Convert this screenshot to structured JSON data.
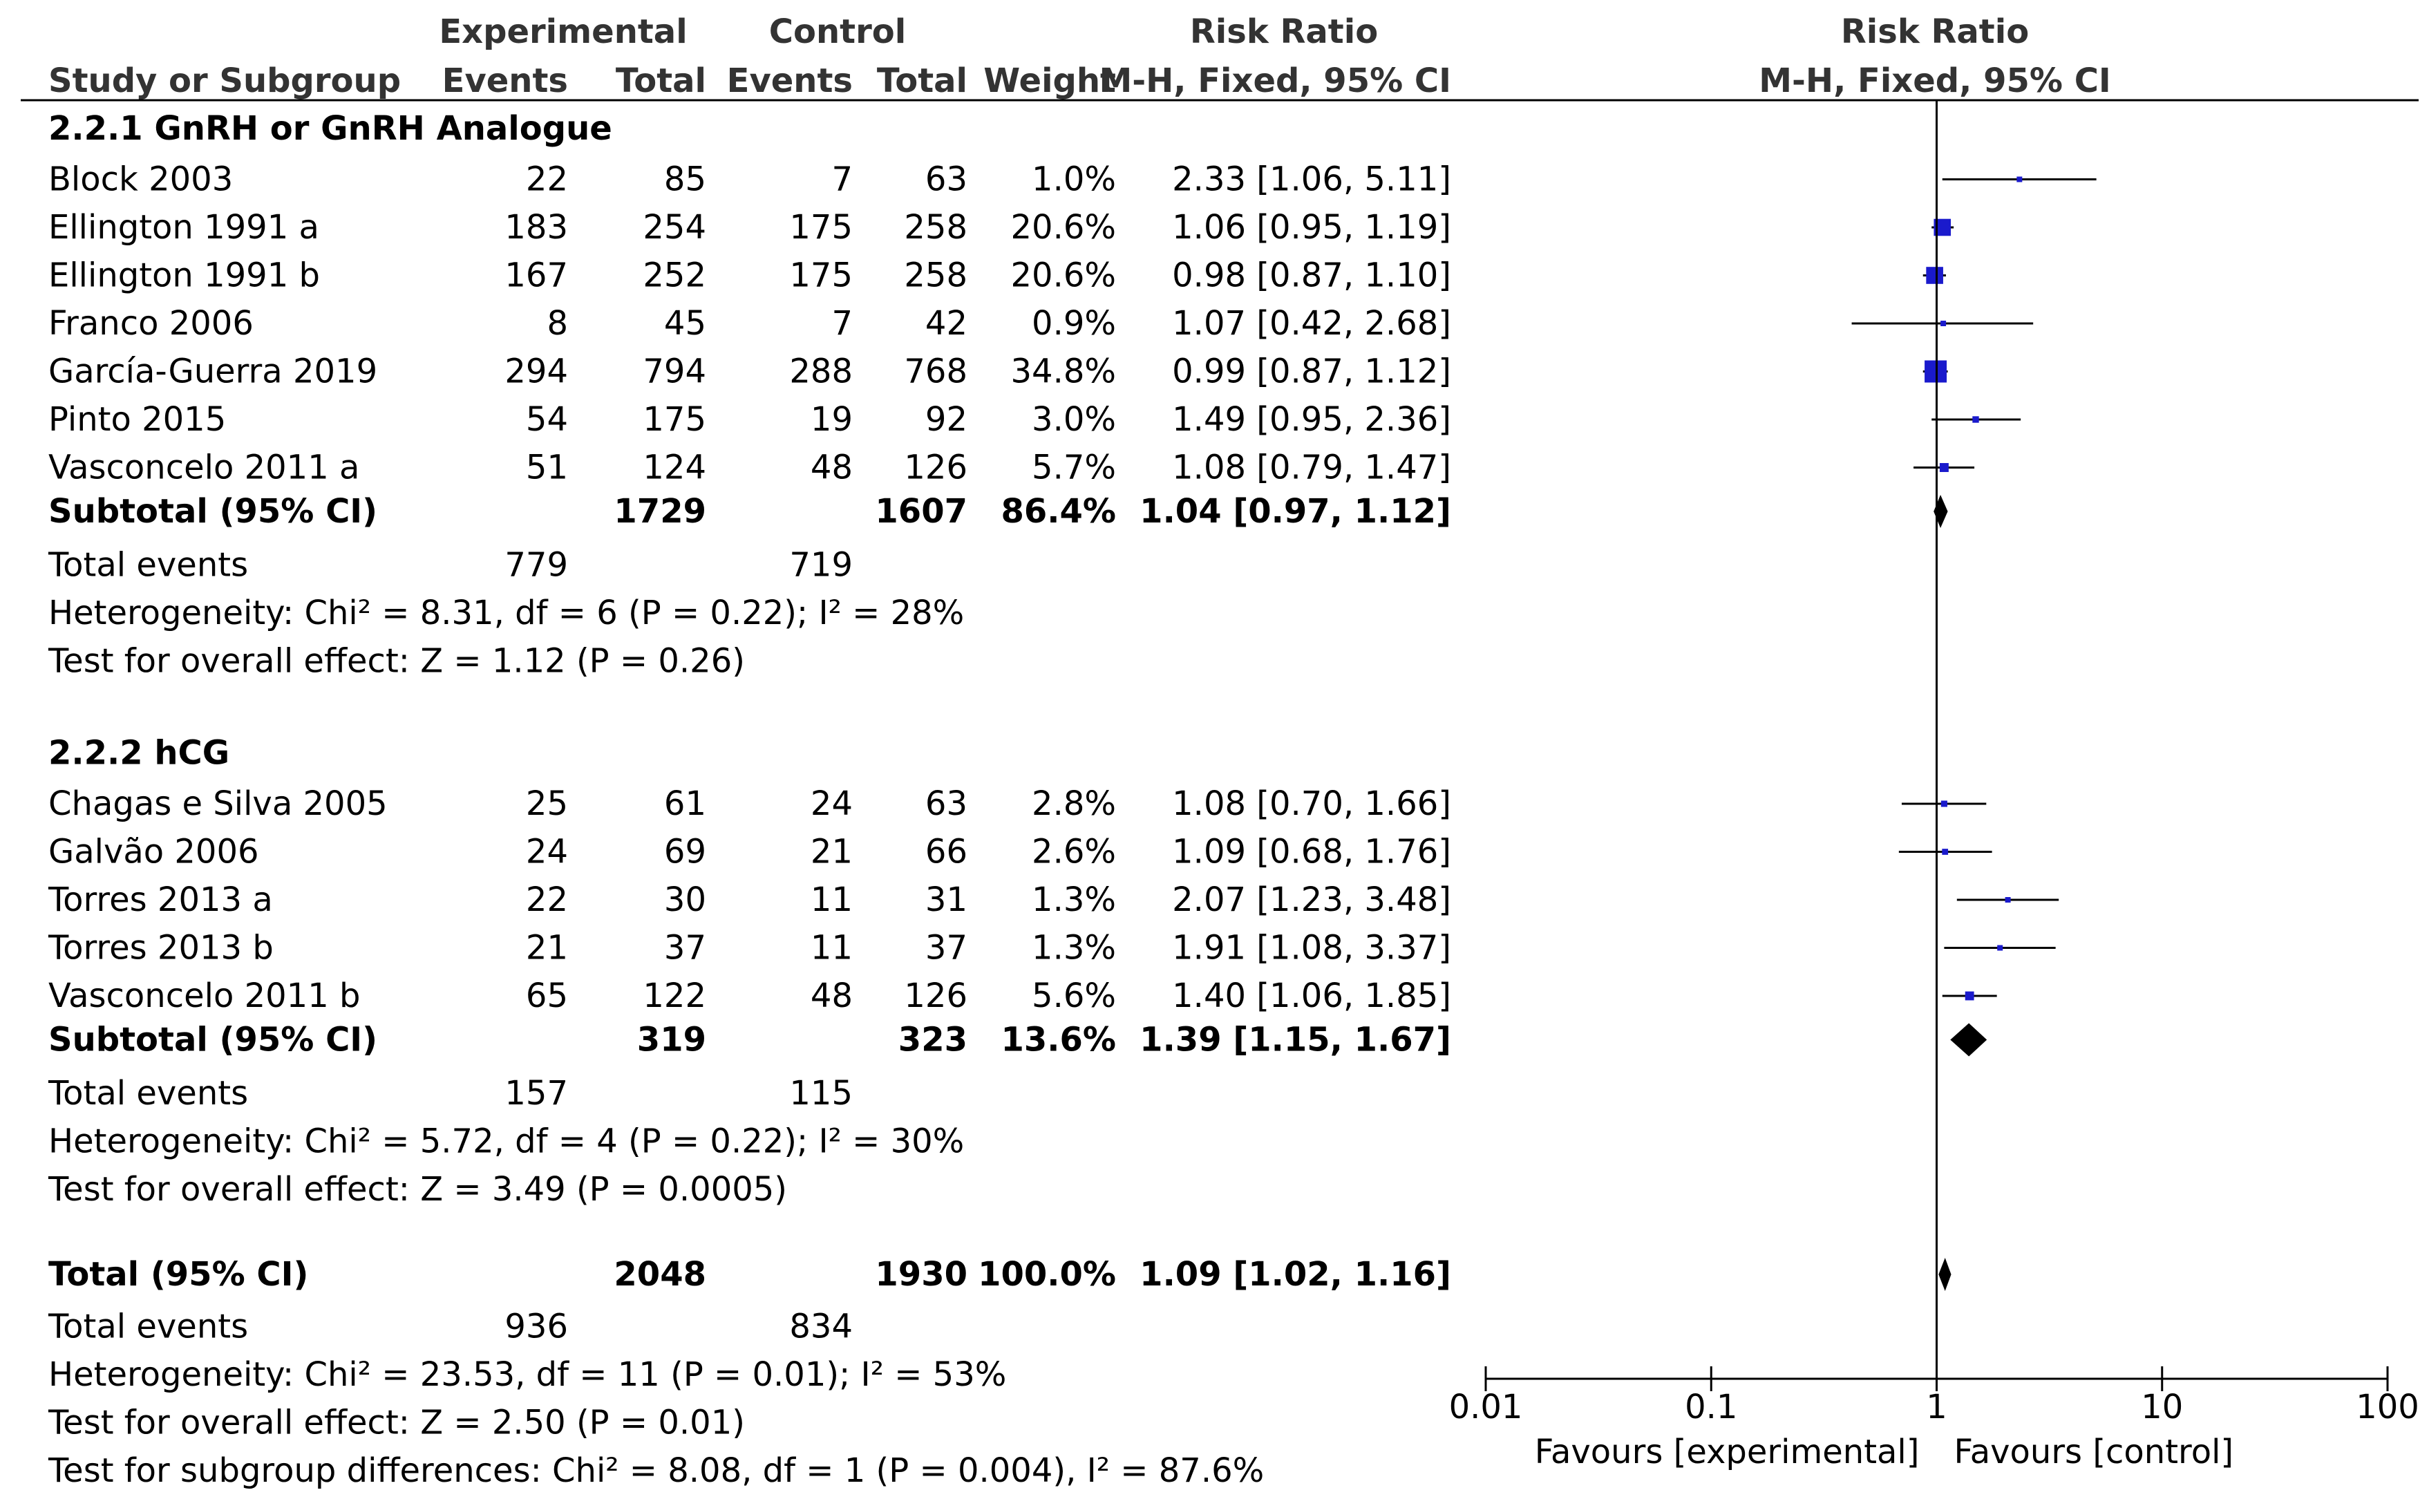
{
  "chart_data": {
    "type": "forest",
    "title": "Risk Ratio (M-H, Fixed, 95% CI)",
    "header": {
      "experimental": "Experimental",
      "control": "Control",
      "risk_ratio_col": "Risk Ratio",
      "risk_ratio_plot": "Risk Ratio",
      "study": "Study or Subgroup",
      "events": "Events",
      "total": "Total",
      "weight": "Weight",
      "method": "M-H, Fixed, 95% CI",
      "method_plot": "M-H, Fixed, 95% CI"
    },
    "subgroups": [
      {
        "name": "2.2.1 GnRH or GnRH Analogue",
        "studies": [
          {
            "study": "Block 2003",
            "exp_events": "22",
            "exp_total": "85",
            "ctl_events": "7",
            "ctl_total": "63",
            "weight_text": "1.0%",
            "ci_text": "2.33 [1.06, 5.11]",
            "rr": 2.33,
            "lo": 1.06,
            "hi": 5.11,
            "weight": 1.0
          },
          {
            "study": "Ellington 1991 a",
            "exp_events": "183",
            "exp_total": "254",
            "ctl_events": "175",
            "ctl_total": "258",
            "weight_text": "20.6%",
            "ci_text": "1.06 [0.95, 1.19]",
            "rr": 1.06,
            "lo": 0.95,
            "hi": 1.19,
            "weight": 20.6
          },
          {
            "study": "Ellington 1991 b",
            "exp_events": "167",
            "exp_total": "252",
            "ctl_events": "175",
            "ctl_total": "258",
            "weight_text": "20.6%",
            "ci_text": "0.98 [0.87, 1.10]",
            "rr": 0.98,
            "lo": 0.87,
            "hi": 1.1,
            "weight": 20.6
          },
          {
            "study": "Franco 2006",
            "exp_events": "8",
            "exp_total": "45",
            "ctl_events": "7",
            "ctl_total": "42",
            "weight_text": "0.9%",
            "ci_text": "1.07 [0.42, 2.68]",
            "rr": 1.07,
            "lo": 0.42,
            "hi": 2.68,
            "weight": 0.9
          },
          {
            "study": "García-Guerra 2019",
            "exp_events": "294",
            "exp_total": "794",
            "ctl_events": "288",
            "ctl_total": "768",
            "weight_text": "34.8%",
            "ci_text": "0.99 [0.87, 1.12]",
            "rr": 0.99,
            "lo": 0.87,
            "hi": 1.12,
            "weight": 34.8
          },
          {
            "study": "Pinto 2015",
            "exp_events": "54",
            "exp_total": "175",
            "ctl_events": "19",
            "ctl_total": "92",
            "weight_text": "3.0%",
            "ci_text": "1.49 [0.95, 2.36]",
            "rr": 1.49,
            "lo": 0.95,
            "hi": 2.36,
            "weight": 3.0
          },
          {
            "study": "Vasconcelo 2011 a",
            "exp_events": "51",
            "exp_total": "124",
            "ctl_events": "48",
            "ctl_total": "126",
            "weight_text": "5.7%",
            "ci_text": "1.08 [0.79, 1.47]",
            "rr": 1.08,
            "lo": 0.79,
            "hi": 1.47,
            "weight": 5.7
          }
        ],
        "subtotal": {
          "label": "Subtotal (95% CI)",
          "exp_total": "1729",
          "ctl_total": "1607",
          "weight_text": "86.4%",
          "ci_text": "1.04 [0.97, 1.12]",
          "rr": 1.04,
          "lo": 0.97,
          "hi": 1.12
        },
        "total_events": {
          "label": "Total events",
          "exp": "779",
          "ctl": "719"
        },
        "heterogeneity": "Heterogeneity: Chi² = 8.31, df = 6 (P = 0.22); I² = 28%",
        "overall": "Test for overall effect: Z = 1.12 (P = 0.26)"
      },
      {
        "name": "2.2.2 hCG",
        "studies": [
          {
            "study": "Chagas e Silva 2005",
            "exp_events": "25",
            "exp_total": "61",
            "ctl_events": "24",
            "ctl_total": "63",
            "weight_text": "2.8%",
            "ci_text": "1.08 [0.70, 1.66]",
            "rr": 1.08,
            "lo": 0.7,
            "hi": 1.66,
            "weight": 2.8
          },
          {
            "study": "Galvão 2006",
            "exp_events": "24",
            "exp_total": "69",
            "ctl_events": "21",
            "ctl_total": "66",
            "weight_text": "2.6%",
            "ci_text": "1.09 [0.68, 1.76]",
            "rr": 1.09,
            "lo": 0.68,
            "hi": 1.76,
            "weight": 2.6
          },
          {
            "study": "Torres 2013 a",
            "exp_events": "22",
            "exp_total": "30",
            "ctl_events": "11",
            "ctl_total": "31",
            "weight_text": "1.3%",
            "ci_text": "2.07 [1.23, 3.48]",
            "rr": 2.07,
            "lo": 1.23,
            "hi": 3.48,
            "weight": 1.3
          },
          {
            "study": "Torres 2013 b",
            "exp_events": "21",
            "exp_total": "37",
            "ctl_events": "11",
            "ctl_total": "37",
            "weight_text": "1.3%",
            "ci_text": "1.91 [1.08, 3.37]",
            "rr": 1.91,
            "lo": 1.08,
            "hi": 3.37,
            "weight": 1.3
          },
          {
            "study": "Vasconcelo 2011 b",
            "exp_events": "65",
            "exp_total": "122",
            "ctl_events": "48",
            "ctl_total": "126",
            "weight_text": "5.6%",
            "ci_text": "1.40 [1.06, 1.85]",
            "rr": 1.4,
            "lo": 1.06,
            "hi": 1.85,
            "weight": 5.6
          }
        ],
        "subtotal": {
          "label": "Subtotal (95% CI)",
          "exp_total": "319",
          "ctl_total": "323",
          "weight_text": "13.6%",
          "ci_text": "1.39 [1.15, 1.67]",
          "rr": 1.39,
          "lo": 1.15,
          "hi": 1.67
        },
        "total_events": {
          "label": "Total events",
          "exp": "157",
          "ctl": "115"
        },
        "heterogeneity": "Heterogeneity: Chi² = 5.72, df = 4 (P = 0.22); I² = 30%",
        "overall": "Test for overall effect: Z = 3.49 (P = 0.0005)"
      }
    ],
    "total": {
      "label": "Total (95% CI)",
      "exp_total": "2048",
      "ctl_total": "1930",
      "weight_text": "100.0%",
      "ci_text": "1.09 [1.02, 1.16]",
      "rr": 1.09,
      "lo": 1.02,
      "hi": 1.16
    },
    "total_events": {
      "label": "Total events",
      "exp": "936",
      "ctl": "834"
    },
    "heterogeneity": "Heterogeneity: Chi² = 23.53, df = 11 (P = 0.01); I² = 53%",
    "overall": "Test for overall effect: Z = 2.50 (P = 0.01)",
    "subgroup_diff": "Test for subgroup differences: Chi² = 8.08, df = 1 (P = 0.004), I² = 87.6%",
    "axis": {
      "scale": "log",
      "range": [
        0.01,
        100
      ],
      "ticks": [
        0.01,
        0.1,
        1,
        10,
        100
      ],
      "tick_labels": [
        "0.01",
        "0.1",
        "1",
        "10",
        "100"
      ],
      "favours_left": "Favours [experimental]",
      "favours_right": "Favours [control]"
    },
    "colors": {
      "square": "#1a1acc",
      "line": "#000000",
      "diamond": "#000000"
    }
  }
}
